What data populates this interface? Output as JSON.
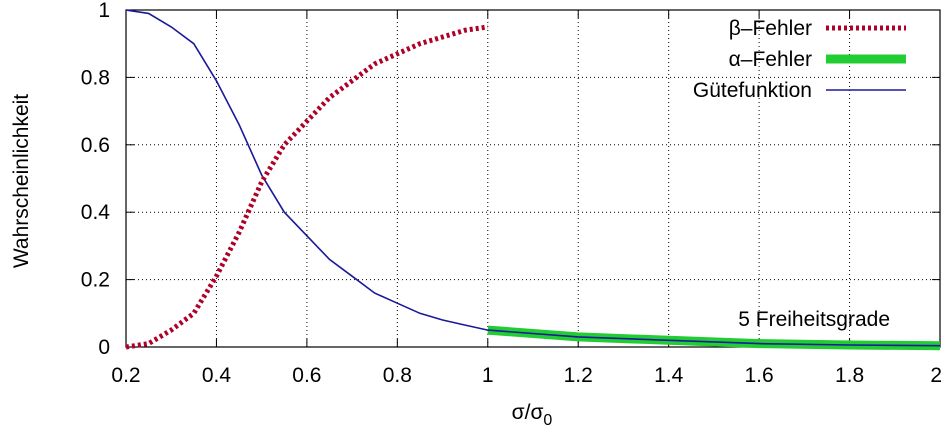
{
  "chart_data": {
    "type": "line",
    "xlabel": "σ/σ0",
    "xlabel_main": "σ/σ",
    "xlabel_sub": "0",
    "ylabel": "Wahrscheinlichkeit",
    "xlim": [
      0.2,
      2
    ],
    "ylim": [
      0,
      1
    ],
    "grid": true,
    "legend_position": "top-right",
    "annotation": "5 Freiheitsgrade",
    "x_ticks": [
      "0.2",
      "0.4",
      "0.6",
      "0.8",
      "1",
      "1.2",
      "1.4",
      "1.6",
      "1.8",
      "2"
    ],
    "y_ticks": [
      "0",
      "0.2",
      "0.4",
      "0.6",
      "0.8",
      "1"
    ],
    "series": [
      {
        "name": "β–Fehler",
        "color": "#b0002a",
        "style": "dotted",
        "x": [
          0.2,
          0.25,
          0.3,
          0.35,
          0.4,
          0.45,
          0.5,
          0.55,
          0.6,
          0.65,
          0.7,
          0.75,
          0.8,
          0.85,
          0.9,
          0.95,
          1.0
        ],
        "y": [
          0.0,
          0.01,
          0.05,
          0.1,
          0.21,
          0.34,
          0.49,
          0.6,
          0.67,
          0.74,
          0.79,
          0.84,
          0.87,
          0.9,
          0.92,
          0.94,
          0.95
        ]
      },
      {
        "name": "α–Fehler",
        "color": "#22cc33",
        "style": "thick",
        "x": [
          1.0,
          1.2,
          1.4,
          1.6,
          1.8,
          2.0
        ],
        "y": [
          0.05,
          0.03,
          0.02,
          0.01,
          0.006,
          0.004
        ]
      },
      {
        "name": "Gütefunktion",
        "color": "#1a1a99",
        "style": "solid",
        "x": [
          0.2,
          0.25,
          0.3,
          0.35,
          0.4,
          0.45,
          0.5,
          0.55,
          0.6,
          0.65,
          0.7,
          0.75,
          0.8,
          0.85,
          0.9,
          0.95,
          1.0,
          1.2,
          1.4,
          1.6,
          1.8,
          2.0
        ],
        "y": [
          1.0,
          0.99,
          0.95,
          0.9,
          0.79,
          0.66,
          0.51,
          0.4,
          0.33,
          0.26,
          0.21,
          0.16,
          0.13,
          0.1,
          0.08,
          0.065,
          0.05,
          0.03,
          0.02,
          0.01,
          0.006,
          0.004
        ]
      }
    ]
  }
}
